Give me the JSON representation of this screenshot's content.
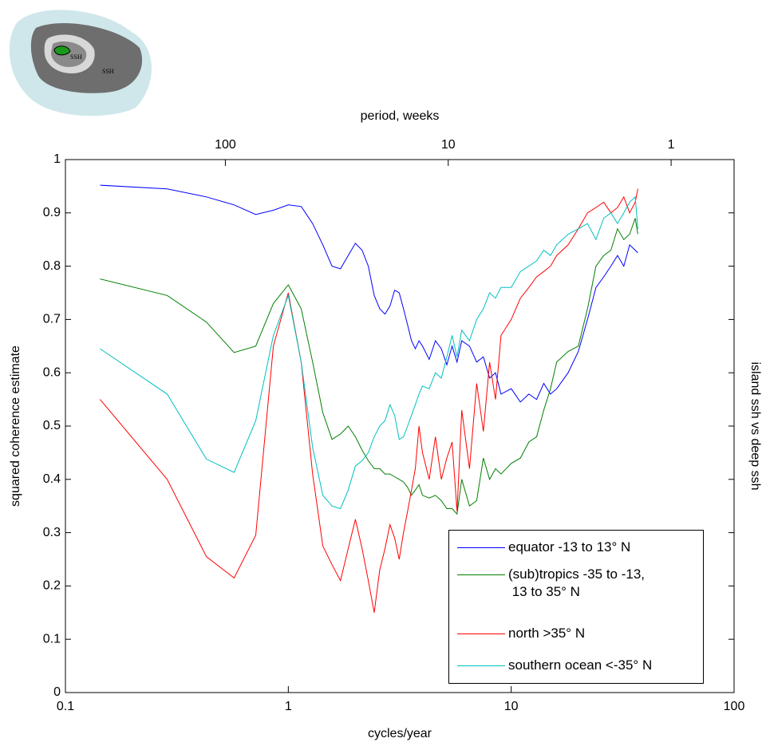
{
  "chart_data": {
    "type": "line",
    "xlabel": "cycles/year",
    "ylabel": "squared coherence estimate",
    "x2label": "period, weeks",
    "y2label": "island ssh vs deep ssh",
    "annotations": [
      "SSH",
      "SSH"
    ],
    "xscale": "log",
    "xlim": [
      0.1,
      100
    ],
    "xticks": [
      0.1,
      1,
      10,
      100
    ],
    "x2lim": [
      521.8,
      0.5218
    ],
    "x2ticks": [
      100,
      10,
      1
    ],
    "ylim": [
      0,
      1
    ],
    "yticks": [
      0,
      0.1,
      0.2,
      0.3,
      0.4,
      0.5,
      0.6,
      0.7,
      0.8,
      0.9,
      1
    ],
    "legend": "lower right",
    "x": [
      0.143,
      0.286,
      0.429,
      0.571,
      0.714,
      0.857,
      1.0,
      1.143,
      1.286,
      1.429,
      1.571,
      1.714,
      1.857,
      2.0,
      2.143,
      2.286,
      2.429,
      2.571,
      2.714,
      2.857,
      3.0,
      3.143,
      3.286,
      3.429,
      3.571,
      3.714,
      3.857,
      4.0,
      4.286,
      4.571,
      4.857,
      5.143,
      5.429,
      5.714,
      6.0,
      6.5,
      7,
      7.5,
      8,
      8.5,
      9,
      10,
      11,
      12,
      13,
      14,
      15,
      16,
      18,
      20,
      22,
      24,
      26,
      28,
      30,
      32,
      34,
      36,
      37
    ],
    "series": [
      {
        "name": "equator -13 to 13° N",
        "color": "#0000ff",
        "values": [
          0.952,
          0.945,
          0.93,
          0.915,
          0.897,
          0.905,
          0.915,
          0.912,
          0.88,
          0.84,
          0.8,
          0.795,
          0.82,
          0.843,
          0.83,
          0.8,
          0.745,
          0.72,
          0.71,
          0.725,
          0.755,
          0.75,
          0.72,
          0.69,
          0.66,
          0.645,
          0.66,
          0.65,
          0.625,
          0.66,
          0.645,
          0.615,
          0.65,
          0.62,
          0.66,
          0.65,
          0.62,
          0.63,
          0.59,
          0.6,
          0.56,
          0.57,
          0.545,
          0.56,
          0.55,
          0.58,
          0.56,
          0.57,
          0.6,
          0.64,
          0.7,
          0.76,
          0.78,
          0.8,
          0.82,
          0.8,
          0.84,
          0.83,
          0.825
        ]
      },
      {
        "name": "(sub)tropics -35 to -13,\n 13 to 35° N",
        "color": "#008000",
        "values": [
          0.776,
          0.745,
          0.695,
          0.638,
          0.65,
          0.73,
          0.765,
          0.72,
          0.62,
          0.525,
          0.475,
          0.485,
          0.5,
          0.48,
          0.455,
          0.435,
          0.42,
          0.42,
          0.41,
          0.41,
          0.405,
          0.4,
          0.395,
          0.385,
          0.37,
          0.38,
          0.39,
          0.37,
          0.365,
          0.37,
          0.36,
          0.345,
          0.345,
          0.335,
          0.4,
          0.35,
          0.36,
          0.44,
          0.4,
          0.42,
          0.41,
          0.43,
          0.44,
          0.47,
          0.48,
          0.53,
          0.57,
          0.62,
          0.64,
          0.65,
          0.72,
          0.8,
          0.82,
          0.83,
          0.87,
          0.85,
          0.86,
          0.89,
          0.86
        ]
      },
      {
        "name": "north >35° N",
        "color": "#ff0000",
        "values": [
          0.55,
          0.4,
          0.255,
          0.215,
          0.295,
          0.65,
          0.75,
          0.62,
          0.41,
          0.275,
          0.24,
          0.21,
          0.27,
          0.325,
          0.27,
          0.21,
          0.15,
          0.23,
          0.27,
          0.315,
          0.29,
          0.25,
          0.3,
          0.34,
          0.38,
          0.42,
          0.5,
          0.45,
          0.4,
          0.48,
          0.4,
          0.44,
          0.47,
          0.34,
          0.53,
          0.42,
          0.58,
          0.49,
          0.62,
          0.55,
          0.67,
          0.7,
          0.74,
          0.76,
          0.78,
          0.79,
          0.8,
          0.82,
          0.84,
          0.87,
          0.9,
          0.91,
          0.92,
          0.9,
          0.91,
          0.93,
          0.9,
          0.92,
          0.945
        ]
      },
      {
        "name": "southern ocean <-35° N",
        "color": "#00bfbf",
        "values": [
          0.645,
          0.56,
          0.438,
          0.413,
          0.51,
          0.67,
          0.745,
          0.62,
          0.46,
          0.37,
          0.35,
          0.345,
          0.38,
          0.425,
          0.435,
          0.45,
          0.48,
          0.5,
          0.51,
          0.54,
          0.52,
          0.475,
          0.48,
          0.5,
          0.52,
          0.54,
          0.56,
          0.575,
          0.57,
          0.6,
          0.59,
          0.63,
          0.67,
          0.63,
          0.68,
          0.66,
          0.7,
          0.72,
          0.75,
          0.74,
          0.76,
          0.76,
          0.79,
          0.8,
          0.81,
          0.83,
          0.82,
          0.84,
          0.86,
          0.87,
          0.88,
          0.85,
          0.89,
          0.9,
          0.88,
          0.9,
          0.92,
          0.93,
          0.87
        ]
      }
    ]
  }
}
